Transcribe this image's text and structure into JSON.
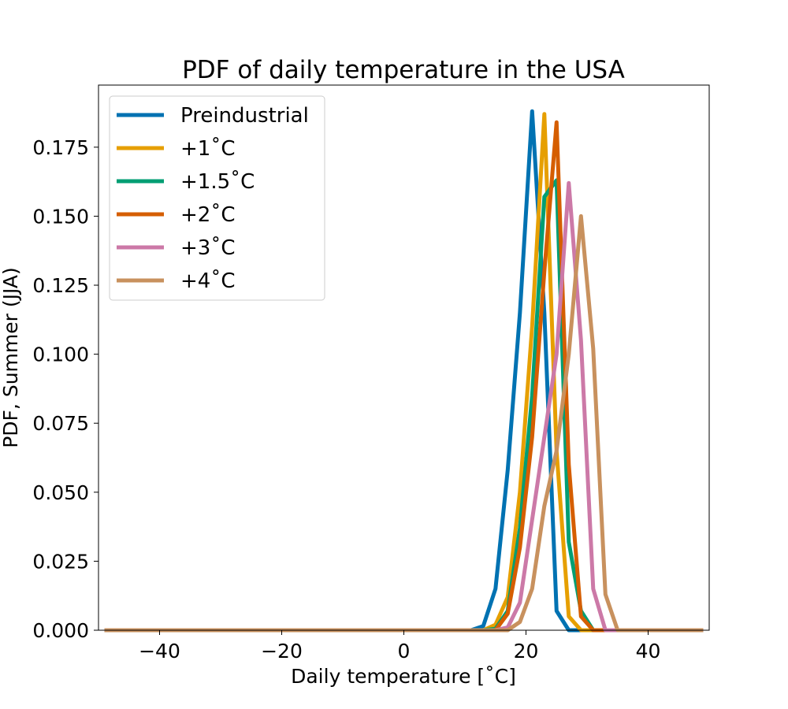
{
  "chart_data": {
    "type": "line",
    "title": "PDF of daily temperature in the USA",
    "xlabel": "Daily temperature [˚C]",
    "ylabel": "PDF, Summer (JJA)",
    "xlim": [
      -50,
      50
    ],
    "ylim": [
      0,
      0.1975
    ],
    "xticks": [
      -40,
      -20,
      0,
      20,
      40
    ],
    "xtick_labels": [
      "−40",
      "−20",
      "0",
      "20",
      "40"
    ],
    "yticks": [
      0,
      0.025,
      0.05,
      0.075,
      0.1,
      0.125,
      0.15,
      0.175
    ],
    "ytick_labels": [
      "0.000",
      "0.025",
      "0.050",
      "0.075",
      "0.100",
      "0.125",
      "0.150",
      "0.175"
    ],
    "grid": false,
    "legend_position": "top-left",
    "series": [
      {
        "name": "Preindustrial",
        "color": "#0072B2",
        "x": [
          -49,
          11,
          13,
          15,
          17,
          19,
          21,
          23,
          25,
          27,
          29,
          49
        ],
        "y": [
          0,
          0,
          0.0015,
          0.015,
          0.058,
          0.115,
          0.188,
          0.115,
          0.007,
          0,
          0,
          0
        ]
      },
      {
        "name": "+1˚C",
        "color": "#E69F00",
        "x": [
          -49,
          13,
          15,
          17,
          19,
          21,
          23,
          25,
          27,
          29,
          49
        ],
        "y": [
          0,
          0,
          0.002,
          0.012,
          0.05,
          0.11,
          0.187,
          0.065,
          0.005,
          0,
          0
        ]
      },
      {
        "name": "+1.5˚C",
        "color": "#009E73",
        "x": [
          -49,
          13,
          15,
          17,
          19,
          21,
          23,
          25,
          27,
          29,
          31,
          49
        ],
        "y": [
          0,
          0,
          0.0005,
          0.007,
          0.037,
          0.085,
          0.157,
          0.163,
          0.032,
          0.007,
          0,
          0
        ]
      },
      {
        "name": "+2˚C",
        "color": "#D55E00",
        "x": [
          -49,
          13,
          15,
          17,
          19,
          21,
          23,
          25,
          27,
          29,
          31,
          49
        ],
        "y": [
          0,
          0,
          0,
          0.006,
          0.03,
          0.07,
          0.13,
          0.184,
          0.06,
          0.005,
          0,
          0
        ]
      },
      {
        "name": "+3˚C",
        "color": "#CC79A7",
        "x": [
          -49,
          15,
          17,
          19,
          21,
          23,
          25,
          27,
          29,
          31,
          33,
          49
        ],
        "y": [
          0,
          0,
          0.001,
          0.01,
          0.04,
          0.07,
          0.1,
          0.162,
          0.105,
          0.015,
          0,
          0
        ]
      },
      {
        "name": "+4˚C",
        "color": "#C8915E",
        "x": [
          -49,
          17,
          19,
          21,
          23,
          25,
          27,
          29,
          31,
          33,
          35,
          49
        ],
        "y": [
          0,
          0,
          0.003,
          0.015,
          0.045,
          0.065,
          0.1,
          0.15,
          0.102,
          0.013,
          0,
          0
        ]
      }
    ]
  }
}
